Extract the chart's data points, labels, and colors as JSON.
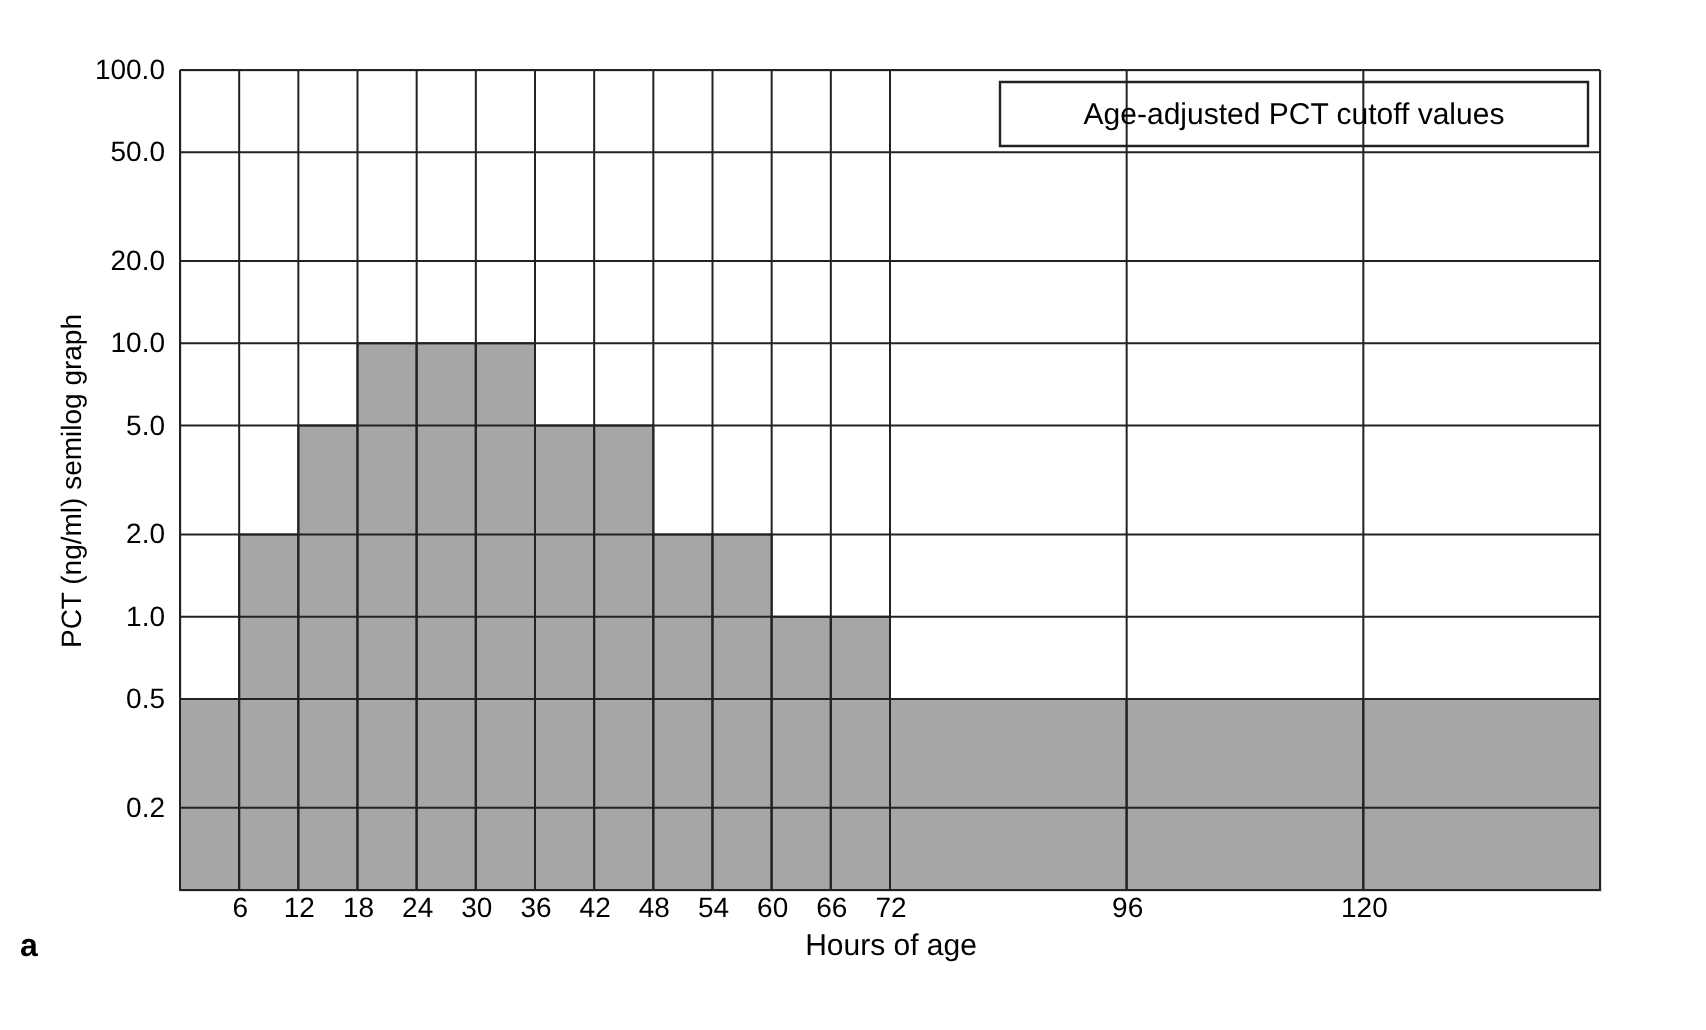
{
  "chart_data": {
    "type": "histogram",
    "xlabel": "Hours of age",
    "ylabel": "PCT (ng/ml) semilog graph",
    "bins": [
      0,
      6,
      12,
      18,
      24,
      30,
      36,
      42,
      48,
      54,
      60,
      66,
      72,
      96,
      120,
      144
    ],
    "values": [
      0.5,
      2,
      5,
      10,
      10,
      10,
      5,
      5,
      2,
      2,
      1,
      1,
      0.5,
      0.5,
      0.5
    ],
    "color": "#a6a6a6",
    "xlim": [
      0,
      144
    ],
    "xticks": [
      6,
      12,
      18,
      24,
      30,
      36,
      42,
      48,
      54,
      60,
      66,
      72,
      96,
      120
    ],
    "ylim": [
      0.1,
      100
    ],
    "yticks": [
      {
        "value": 0.2,
        "label": "0.2"
      },
      {
        "value": 0.5,
        "label": "0.5"
      },
      {
        "value": 1,
        "label": "1.0"
      },
      {
        "value": 2,
        "label": "2.0"
      },
      {
        "value": 5,
        "label": "5.0"
      },
      {
        "value": 10,
        "label": "10.0"
      },
      {
        "value": 20,
        "label": "20.0"
      },
      {
        "value": 50,
        "label": "50.0"
      },
      {
        "value": 100,
        "label": "100.0"
      }
    ],
    "log": true,
    "grid": true,
    "annotations": [
      "Age-adjusted PCT cutoff values",
      "a"
    ]
  }
}
